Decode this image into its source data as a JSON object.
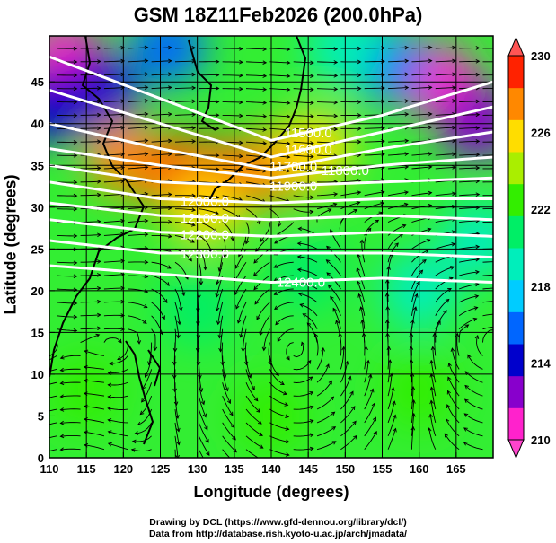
{
  "chart_data": {
    "type": "heatmap",
    "title": "GSM 18Z11Feb2026 (200.0hPa)",
    "xlabel": "Longitude (degrees)",
    "ylabel": "Latitude  (degrees)",
    "xlim": [
      110,
      170
    ],
    "ylim": [
      0,
      50.5
    ],
    "xticks": [
      "110",
      "115",
      "120",
      "125",
      "130",
      "135",
      "140",
      "145",
      "150",
      "155",
      "160",
      "165"
    ],
    "yticks": [
      "0",
      "5",
      "10",
      "15",
      "20",
      "25",
      "30",
      "35",
      "40",
      "45"
    ],
    "grid": true,
    "colorbar": {
      "range": [
        210,
        230
      ],
      "ticks": [
        "210",
        "214",
        "218",
        "222",
        "226",
        "230"
      ],
      "extend": "both",
      "colors": [
        "#ff22cc",
        "#8800cc",
        "#0000cc",
        "#0066ff",
        "#00ccff",
        "#00eebb",
        "#00ee66",
        "#33ee00",
        "#aaee00",
        "#ffdd00",
        "#ff8800",
        "#ff2200"
      ]
    },
    "temperature_features": [
      {
        "lon": 127,
        "lat": 34,
        "value": 229
      },
      {
        "lon": 134,
        "lat": 33.5,
        "value": 229
      },
      {
        "lon": 141,
        "lat": 35,
        "value": 228
      },
      {
        "lon": 120,
        "lat": 36,
        "value": 227
      },
      {
        "lon": 131,
        "lat": 30,
        "value": 226
      },
      {
        "lon": 146,
        "lat": 37,
        "value": 226
      },
      {
        "lon": 112,
        "lat": 48,
        "value": 210
      },
      {
        "lon": 117,
        "lat": 44,
        "value": 214
      },
      {
        "lon": 110,
        "lat": 42,
        "value": 214
      },
      {
        "lon": 163,
        "lat": 45,
        "value": 210
      },
      {
        "lon": 168,
        "lat": 40,
        "value": 213
      },
      {
        "lon": 156,
        "lat": 47,
        "value": 215
      },
      {
        "lon": 126,
        "lat": 49,
        "value": 216
      },
      {
        "lon": 150,
        "lat": 49,
        "value": 219
      },
      {
        "lon": 160,
        "lat": 20,
        "value": 219
      },
      {
        "lon": 145,
        "lat": 22,
        "value": 220
      },
      {
        "lon": 168,
        "lat": 26,
        "value": 219
      },
      {
        "lon": 130,
        "lat": 18,
        "value": 221
      },
      {
        "lon": 115,
        "lat": 8,
        "value": 223
      },
      {
        "lon": 140,
        "lat": 5,
        "value": 222
      },
      {
        "lon": 160,
        "lat": 8,
        "value": 222
      }
    ],
    "height_contours": [
      {
        "label": "11500.0",
        "lon": [
          110,
          125,
          140,
          155,
          170
        ],
        "lat": [
          48,
          43,
          38,
          41,
          45
        ],
        "label_lon": 145
      },
      {
        "label": "11600.0",
        "lon": [
          110,
          125,
          140,
          155,
          170
        ],
        "lat": [
          44,
          40,
          36,
          39,
          42
        ],
        "label_lon": 145
      },
      {
        "label": "11700.0",
        "lon": [
          110,
          125,
          140,
          155,
          170
        ],
        "lat": [
          40,
          37,
          34.5,
          37,
          39
        ],
        "label_lon": 144
      },
      {
        "label": "11800.0",
        "lon": [
          110,
          125,
          140,
          155,
          170
        ],
        "lat": [
          37,
          35,
          33.5,
          35,
          36
        ],
        "label_lon": 144
      },
      {
        "label": "11900.0",
        "lon": [
          110,
          125,
          140,
          155,
          170
        ],
        "lat": [
          35,
          33,
          32.5,
          33,
          33.5
        ],
        "label_lon": 144
      },
      {
        "label": "12000.0",
        "lon": [
          110,
          125,
          140,
          155,
          170
        ],
        "lat": [
          33,
          31,
          30.5,
          31,
          31
        ],
        "label_lon": 131
      },
      {
        "label": "12100.0",
        "lon": [
          110,
          125,
          140,
          155,
          170
        ],
        "lat": [
          30.5,
          29,
          28.5,
          29,
          28.5
        ],
        "label_lon": 131
      },
      {
        "label": "12200.0",
        "lon": [
          110,
          125,
          140,
          155,
          170
        ],
        "lat": [
          28.5,
          27,
          26.5,
          27,
          26.5
        ],
        "label_lon": 131
      },
      {
        "label": "12300.0",
        "lon": [
          110,
          125,
          140,
          155,
          170
        ],
        "lat": [
          26,
          24.5,
          24.5,
          24.5,
          24
        ],
        "label_lon": 131
      },
      {
        "label": "12400.0",
        "lon": [
          110,
          125,
          140,
          155,
          170
        ],
        "lat": [
          23,
          22,
          21,
          21.5,
          21
        ],
        "label_lon": 144
      }
    ],
    "vortex": {
      "lon": 143,
      "lat": 13
    }
  },
  "credits": {
    "line1": "Drawing by DCL (https://www.gfd-dennou.org/library/dcl/)",
    "line2": "Data from http://database.rish.kyoto-u.ac.jp/arch/jmadata/"
  }
}
